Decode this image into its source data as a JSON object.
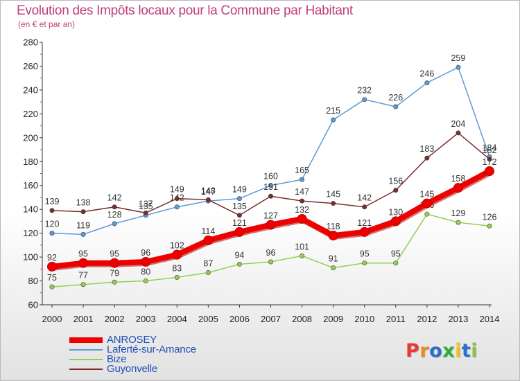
{
  "header": {
    "title": "Evolution des Impôts locaux pour la Commune par Habitant",
    "subtitle": "(en € et par an)"
  },
  "logo": {
    "text": "Proxiti",
    "letters": [
      "P",
      "r",
      "o",
      "x",
      "i",
      "t",
      "i"
    ],
    "colors": [
      "#e83a2f",
      "#f08a20",
      "#2a6fd0",
      "#2bb03a",
      "#f0c020",
      "#2a6fd0",
      "#8bc34a"
    ]
  },
  "chart_data": {
    "type": "line",
    "title": "Evolution des Impôts locaux pour la Commune par Habitant",
    "subtitle": "(en € et par an)",
    "x": [
      "2000",
      "2001",
      "2002",
      "2003",
      "2004",
      "2005",
      "2006",
      "2007",
      "2008",
      "2009",
      "2010",
      "2011",
      "2012",
      "2013",
      "2014"
    ],
    "ylim": [
      60,
      280
    ],
    "yticks": [
      60,
      80,
      100,
      120,
      140,
      160,
      180,
      200,
      220,
      240,
      260,
      280
    ],
    "grid": false,
    "legend_position": "bottom-left",
    "series": [
      {
        "name": "ANROSEY",
        "color": "#ee0000",
        "highlight": true,
        "values": [
          92,
          95,
          95,
          96,
          102,
          114,
          121,
          127,
          132,
          118,
          121,
          130,
          145,
          158,
          172
        ]
      },
      {
        "name": "Laferté-sur-Amance",
        "color": "#5b9bd5",
        "highlight": false,
        "values": [
          120,
          119,
          128,
          135,
          142,
          147,
          149,
          160,
          165,
          215,
          232,
          226,
          246,
          259,
          184
        ]
      },
      {
        "name": "Bize",
        "color": "#92d050",
        "highlight": false,
        "values": [
          75,
          77,
          79,
          80,
          83,
          87,
          94,
          96,
          101,
          91,
          95,
          95,
          136,
          129,
          126
        ]
      },
      {
        "name": "Guyonvelle",
        "color": "#7b2c2c",
        "highlight": false,
        "values": [
          139,
          138,
          142,
          137,
          149,
          148,
          135,
          151,
          147,
          145,
          142,
          156,
          183,
          204,
          182
        ]
      }
    ]
  }
}
